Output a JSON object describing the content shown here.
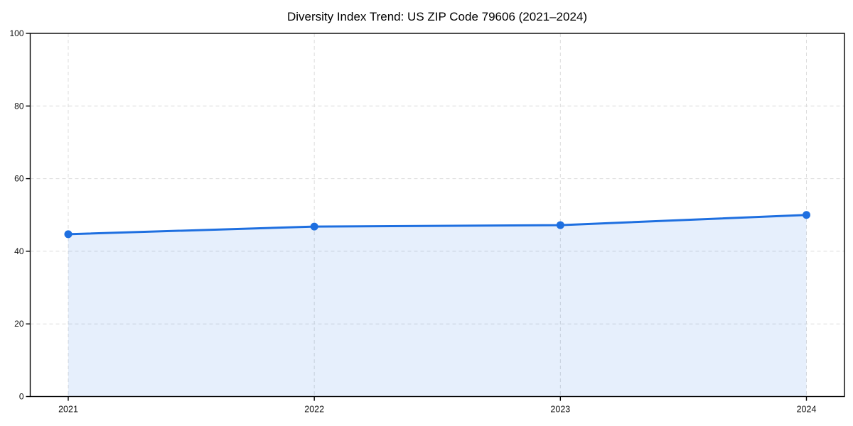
{
  "chart_data": {
    "type": "area",
    "title": "Diversity Index Trend: US ZIP Code 79606 (2021–2024)",
    "categories": [
      "2021",
      "2022",
      "2023",
      "2024"
    ],
    "series": [
      {
        "name": "Diversity Index",
        "values": [
          44.7,
          46.8,
          47.2,
          50.0
        ]
      }
    ],
    "xlabel": "",
    "ylabel": "",
    "ylim": [
      0,
      100
    ],
    "yticks": [
      0,
      20,
      40,
      60,
      80,
      100
    ],
    "grid": "dashed, horizontal and vertical at year positions",
    "legend": "none",
    "colors": {
      "line": "#1e6fe0",
      "marker": "#1e6fe0",
      "fill": "rgba(30,111,224,0.11)",
      "grid": "#dcdcdc",
      "spine": "#000000",
      "tick_label": "#111111",
      "background": "#ffffff"
    }
  }
}
